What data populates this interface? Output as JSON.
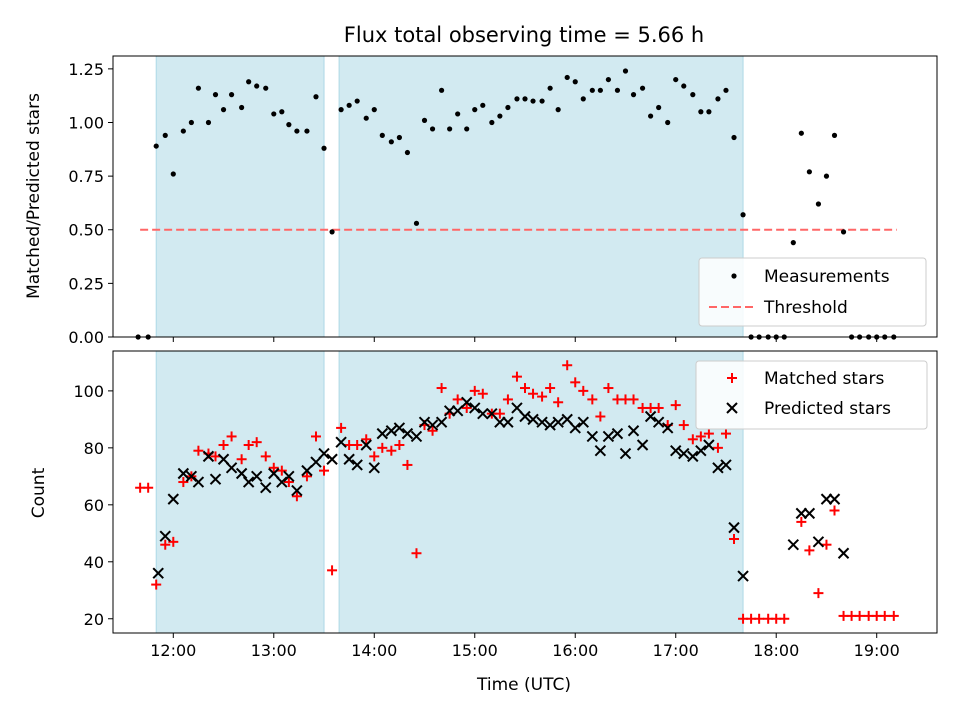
{
  "chart_data": [
    {
      "type": "scatter",
      "title": "Flux total observing time = 5.66 h",
      "xlabel": "",
      "ylabel": "Matched/Predicted stars",
      "xlim": [
        11.4,
        19.6
      ],
      "ylim": [
        0,
        1.31
      ],
      "yticks": [
        "0.00",
        "0.25",
        "0.50",
        "0.75",
        "1.00",
        "1.25"
      ],
      "ytick_values": [
        0,
        0.25,
        0.5,
        0.75,
        1.0,
        1.25
      ],
      "shaded_intervals": [
        [
          11.83,
          13.5
        ],
        [
          13.65,
          17.67
        ]
      ],
      "shade_color": "#add8e6",
      "threshold": {
        "value": 0.5,
        "x_range": [
          11.67,
          19.2
        ],
        "color": "#ff6666"
      },
      "legend": {
        "position": "lower right",
        "entries": [
          "Measurements",
          "Threshold"
        ]
      },
      "series": [
        {
          "name": "Measurements",
          "color": "#000000",
          "points": [
            [
              11.65,
              0.0
            ],
            [
              11.75,
              0.0
            ],
            [
              11.83,
              0.89
            ],
            [
              11.92,
              0.94
            ],
            [
              12.0,
              0.76
            ],
            [
              12.1,
              0.96
            ],
            [
              12.18,
              1.0
            ],
            [
              12.25,
              1.16
            ],
            [
              12.35,
              1.0
            ],
            [
              12.42,
              1.13
            ],
            [
              12.5,
              1.06
            ],
            [
              12.58,
              1.13
            ],
            [
              12.68,
              1.07
            ],
            [
              12.75,
              1.19
            ],
            [
              12.83,
              1.17
            ],
            [
              12.92,
              1.16
            ],
            [
              13.0,
              1.04
            ],
            [
              13.08,
              1.05
            ],
            [
              13.15,
              0.99
            ],
            [
              13.23,
              0.96
            ],
            [
              13.33,
              0.96
            ],
            [
              13.42,
              1.12
            ],
            [
              13.5,
              0.88
            ],
            [
              13.58,
              0.49
            ],
            [
              13.67,
              1.06
            ],
            [
              13.75,
              1.08
            ],
            [
              13.83,
              1.1
            ],
            [
              13.92,
              1.02
            ],
            [
              14.0,
              1.06
            ],
            [
              14.08,
              0.94
            ],
            [
              14.17,
              0.91
            ],
            [
              14.25,
              0.93
            ],
            [
              14.33,
              0.86
            ],
            [
              14.42,
              0.53
            ],
            [
              14.5,
              1.01
            ],
            [
              14.58,
              0.97
            ],
            [
              14.67,
              1.15
            ],
            [
              14.75,
              0.97
            ],
            [
              14.83,
              1.04
            ],
            [
              14.92,
              0.97
            ],
            [
              15.0,
              1.06
            ],
            [
              15.08,
              1.08
            ],
            [
              15.17,
              1.0
            ],
            [
              15.25,
              1.03
            ],
            [
              15.33,
              1.07
            ],
            [
              15.42,
              1.11
            ],
            [
              15.5,
              1.11
            ],
            [
              15.58,
              1.1
            ],
            [
              15.67,
              1.1
            ],
            [
              15.75,
              1.16
            ],
            [
              15.83,
              1.06
            ],
            [
              15.92,
              1.21
            ],
            [
              16.0,
              1.19
            ],
            [
              16.08,
              1.11
            ],
            [
              16.17,
              1.15
            ],
            [
              16.25,
              1.15
            ],
            [
              16.33,
              1.2
            ],
            [
              16.42,
              1.15
            ],
            [
              16.5,
              1.24
            ],
            [
              16.58,
              1.13
            ],
            [
              16.67,
              1.16
            ],
            [
              16.75,
              1.03
            ],
            [
              16.83,
              1.07
            ],
            [
              16.92,
              1.0
            ],
            [
              17.0,
              1.2
            ],
            [
              17.08,
              1.17
            ],
            [
              17.17,
              1.13
            ],
            [
              17.25,
              1.05
            ],
            [
              17.33,
              1.05
            ],
            [
              17.42,
              1.11
            ],
            [
              17.5,
              1.15
            ],
            [
              17.58,
              0.93
            ],
            [
              17.67,
              0.57
            ],
            [
              17.75,
              0.0
            ],
            [
              17.83,
              0.0
            ],
            [
              17.92,
              0.0
            ],
            [
              18.0,
              0.0
            ],
            [
              18.08,
              0.0
            ],
            [
              18.17,
              0.44
            ],
            [
              18.25,
              0.95
            ],
            [
              18.33,
              0.77
            ],
            [
              18.42,
              0.62
            ],
            [
              18.5,
              0.75
            ],
            [
              18.58,
              0.94
            ],
            [
              18.67,
              0.49
            ],
            [
              18.75,
              0.0
            ],
            [
              18.83,
              0.0
            ],
            [
              18.92,
              0.0
            ],
            [
              19.0,
              0.0
            ],
            [
              19.08,
              0.0
            ],
            [
              19.17,
              0.0
            ]
          ]
        }
      ]
    },
    {
      "type": "scatter",
      "title": "",
      "xlabel": "Time (UTC)",
      "ylabel": "Count",
      "xlim": [
        11.4,
        19.6
      ],
      "ylim": [
        15,
        114
      ],
      "yticks": [
        "20",
        "40",
        "60",
        "80",
        "100"
      ],
      "ytick_values": [
        20,
        40,
        60,
        80,
        100
      ],
      "xticks": [
        "12:00",
        "13:00",
        "14:00",
        "15:00",
        "16:00",
        "17:00",
        "18:00",
        "19:00"
      ],
      "xtick_values": [
        12,
        13,
        14,
        15,
        16,
        17,
        18,
        19
      ],
      "shaded_intervals": [
        [
          11.83,
          13.5
        ],
        [
          13.65,
          17.67
        ]
      ],
      "shade_color": "#add8e6",
      "legend": {
        "position": "upper right",
        "entries": [
          "Matched stars",
          "Predicted stars"
        ]
      },
      "series": [
        {
          "name": "Matched stars",
          "marker": "+",
          "color": "#ff0000",
          "points": [
            [
              11.67,
              66
            ],
            [
              11.75,
              66
            ],
            [
              11.83,
              32
            ],
            [
              11.92,
              46
            ],
            [
              12.0,
              47
            ],
            [
              12.1,
              68
            ],
            [
              12.18,
              70
            ],
            [
              12.25,
              79
            ],
            [
              12.35,
              78
            ],
            [
              12.42,
              77
            ],
            [
              12.5,
              81
            ],
            [
              12.58,
              84
            ],
            [
              12.68,
              76
            ],
            [
              12.75,
              81
            ],
            [
              12.83,
              82
            ],
            [
              12.92,
              77
            ],
            [
              13.0,
              73
            ],
            [
              13.08,
              72
            ],
            [
              13.15,
              68
            ],
            [
              13.23,
              63
            ],
            [
              13.33,
              70
            ],
            [
              13.42,
              84
            ],
            [
              13.5,
              72
            ],
            [
              13.58,
              37
            ],
            [
              13.67,
              87
            ],
            [
              13.75,
              81
            ],
            [
              13.83,
              81
            ],
            [
              13.92,
              83
            ],
            [
              14.0,
              77
            ],
            [
              14.08,
              80
            ],
            [
              14.17,
              79
            ],
            [
              14.25,
              81
            ],
            [
              14.33,
              74
            ],
            [
              14.42,
              43
            ],
            [
              14.5,
              88
            ],
            [
              14.58,
              86
            ],
            [
              14.67,
              101
            ],
            [
              14.75,
              92
            ],
            [
              14.83,
              97
            ],
            [
              14.92,
              94
            ],
            [
              15.0,
              100
            ],
            [
              15.08,
              99
            ],
            [
              15.17,
              92
            ],
            [
              15.25,
              92
            ],
            [
              15.33,
              97
            ],
            [
              15.42,
              105
            ],
            [
              15.5,
              101
            ],
            [
              15.58,
              99
            ],
            [
              15.67,
              98
            ],
            [
              15.75,
              101
            ],
            [
              15.83,
              96
            ],
            [
              15.92,
              109
            ],
            [
              16.0,
              103
            ],
            [
              16.08,
              100
            ],
            [
              16.17,
              97
            ],
            [
              16.25,
              91
            ],
            [
              16.33,
              101
            ],
            [
              16.42,
              97
            ],
            [
              16.5,
              97
            ],
            [
              16.58,
              97
            ],
            [
              16.67,
              94
            ],
            [
              16.75,
              94
            ],
            [
              16.83,
              94
            ],
            [
              16.92,
              88
            ],
            [
              17.0,
              95
            ],
            [
              17.08,
              88
            ],
            [
              17.17,
              83
            ],
            [
              17.25,
              84
            ],
            [
              17.33,
              85
            ],
            [
              17.42,
              80
            ],
            [
              17.5,
              85
            ],
            [
              17.58,
              48
            ],
            [
              17.67,
              20
            ],
            [
              17.75,
              20
            ],
            [
              17.83,
              20
            ],
            [
              17.92,
              20
            ],
            [
              18.0,
              20
            ],
            [
              18.08,
              20
            ],
            [
              18.25,
              54
            ],
            [
              18.33,
              44
            ],
            [
              18.42,
              29
            ],
            [
              18.5,
              46
            ],
            [
              18.58,
              58
            ],
            [
              18.67,
              21
            ],
            [
              18.75,
              21
            ],
            [
              18.83,
              21
            ],
            [
              18.92,
              21
            ],
            [
              19.0,
              21
            ],
            [
              19.08,
              21
            ],
            [
              19.17,
              21
            ]
          ]
        },
        {
          "name": "Predicted stars",
          "marker": "x",
          "color": "#000000",
          "points": [
            [
              11.85,
              36
            ],
            [
              11.92,
              49
            ],
            [
              12.0,
              62
            ],
            [
              12.1,
              71
            ],
            [
              12.18,
              70
            ],
            [
              12.25,
              68
            ],
            [
              12.35,
              77
            ],
            [
              12.42,
              69
            ],
            [
              12.5,
              76
            ],
            [
              12.58,
              73
            ],
            [
              12.68,
              71
            ],
            [
              12.75,
              68
            ],
            [
              12.83,
              70
            ],
            [
              12.92,
              66
            ],
            [
              13.0,
              71
            ],
            [
              13.08,
              68
            ],
            [
              13.15,
              70
            ],
            [
              13.23,
              65
            ],
            [
              13.33,
              72
            ],
            [
              13.42,
              75
            ],
            [
              13.5,
              78
            ],
            [
              13.58,
              76
            ],
            [
              13.67,
              82
            ],
            [
              13.75,
              76
            ],
            [
              13.83,
              74
            ],
            [
              13.92,
              81
            ],
            [
              14.0,
              73
            ],
            [
              14.08,
              85
            ],
            [
              14.17,
              86
            ],
            [
              14.25,
              87
            ],
            [
              14.33,
              85
            ],
            [
              14.42,
              84
            ],
            [
              14.5,
              89
            ],
            [
              14.58,
              88
            ],
            [
              14.67,
              89
            ],
            [
              14.75,
              93
            ],
            [
              14.83,
              93
            ],
            [
              14.92,
              96
            ],
            [
              15.0,
              94
            ],
            [
              15.08,
              92
            ],
            [
              15.17,
              92
            ],
            [
              15.25,
              89
            ],
            [
              15.33,
              89
            ],
            [
              15.42,
              94
            ],
            [
              15.5,
              91
            ],
            [
              15.58,
              90
            ],
            [
              15.67,
              89
            ],
            [
              15.75,
              88
            ],
            [
              15.83,
              89
            ],
            [
              15.92,
              90
            ],
            [
              16.0,
              87
            ],
            [
              16.08,
              89
            ],
            [
              16.17,
              84
            ],
            [
              16.25,
              79
            ],
            [
              16.33,
              84
            ],
            [
              16.42,
              85
            ],
            [
              16.5,
              78
            ],
            [
              16.58,
              86
            ],
            [
              16.67,
              81
            ],
            [
              16.75,
              91
            ],
            [
              16.83,
              89
            ],
            [
              16.92,
              87
            ],
            [
              17.0,
              79
            ],
            [
              17.08,
              78
            ],
            [
              17.17,
              77
            ],
            [
              17.25,
              79
            ],
            [
              17.33,
              81
            ],
            [
              17.42,
              73
            ],
            [
              17.5,
              74
            ],
            [
              17.58,
              52
            ],
            [
              17.67,
              35
            ],
            [
              18.17,
              46
            ],
            [
              18.25,
              57
            ],
            [
              18.33,
              57
            ],
            [
              18.42,
              47
            ],
            [
              18.5,
              62
            ],
            [
              18.58,
              62
            ],
            [
              18.67,
              43
            ]
          ]
        }
      ]
    }
  ]
}
